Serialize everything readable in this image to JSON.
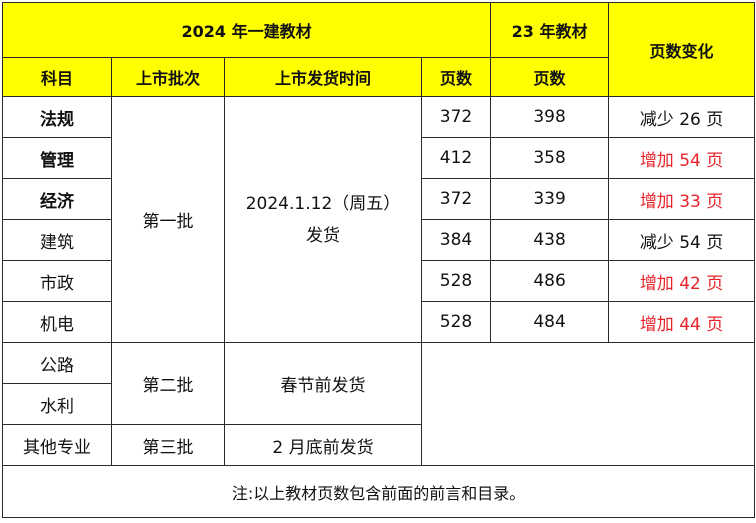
{
  "header": {
    "title_2024": "2024 年一建教材",
    "title_2023": "23 年教材",
    "page_change": "页数变化",
    "col_subject": "科目",
    "col_batch": "上市批次",
    "col_ship_time": "上市发货时间",
    "col_pages_2024": "页数",
    "col_pages_2023": "页数"
  },
  "batches": {
    "first": "第一批",
    "second": "第二批",
    "third": "第三批"
  },
  "ship_times": {
    "first_date": "2024.1.12（周五）",
    "first_ship": "发货",
    "second": "春节前发货",
    "third": "2 月底前发货"
  },
  "rows": [
    {
      "subject": "法规",
      "pages_2024": "372",
      "pages_2023": "398",
      "change": "减少 26 页"
    },
    {
      "subject": "管理",
      "pages_2024": "412",
      "pages_2023": "358",
      "change": "增加 54 页"
    },
    {
      "subject": "经济",
      "pages_2024": "372",
      "pages_2023": "339",
      "change": "增加 33 页"
    },
    {
      "subject": "建筑",
      "pages_2024": "384",
      "pages_2023": "438",
      "change": "减少 54 页"
    },
    {
      "subject": "市政",
      "pages_2024": "528",
      "pages_2023": "486",
      "change": "增加 42 页"
    },
    {
      "subject": "机电",
      "pages_2024": "528",
      "pages_2023": "484",
      "change": "增加 44 页"
    }
  ],
  "other_rows": [
    {
      "subject": "公路"
    },
    {
      "subject": "水利"
    },
    {
      "subject": "其他专业"
    }
  ],
  "note": "注:以上教材页数包含前面的前言和目录。",
  "colors": {
    "header_yellow": "#ffff00",
    "increase_red": "#e8232a",
    "border": "#2a2a2a"
  }
}
